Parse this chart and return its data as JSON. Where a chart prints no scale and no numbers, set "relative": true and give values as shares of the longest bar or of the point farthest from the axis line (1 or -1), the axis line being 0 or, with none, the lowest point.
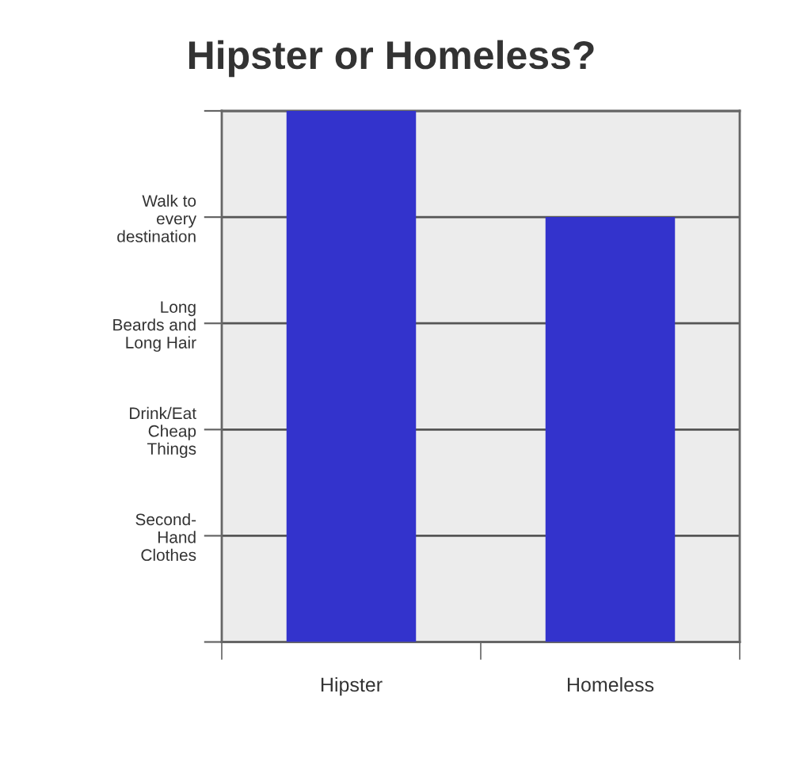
{
  "chart_data": {
    "type": "bar",
    "title": "Hipster or Homeless?",
    "categories": [
      "Hipster",
      "Homeless"
    ],
    "values": [
      1,
      0.8
    ],
    "color": "#3333cc",
    "relative": true,
    "annotations": [
      "Walk to\nevery\ndestination",
      "Long\nBeards and\nLong Hair",
      "Drink/Eat\nCheap\nThings",
      "Second-\nHand\nClothes"
    ],
    "grid": "y"
  }
}
